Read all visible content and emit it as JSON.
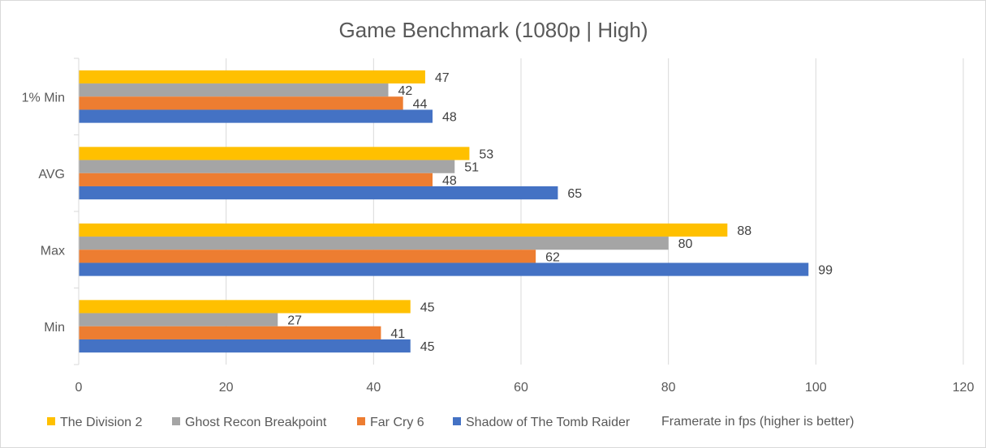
{
  "chart_data": {
    "type": "bar",
    "orientation": "horizontal",
    "title": "Game Benchmark (1080p | High)",
    "xlabel": "Framerate in fps (higher is better)",
    "ylabel": "",
    "categories": [
      "1% Min",
      "AVG",
      "Max",
      "Min"
    ],
    "series": [
      {
        "name": "The Division 2",
        "color": "#ffc000",
        "values": [
          47,
          53,
          88,
          45
        ]
      },
      {
        "name": "Ghost Recon Breakpoint",
        "color": "#a5a5a5",
        "values": [
          42,
          51,
          80,
          27
        ]
      },
      {
        "name": "Far Cry 6",
        "color": "#ed7d31",
        "values": [
          44,
          48,
          62,
          41
        ]
      },
      {
        "name": "Shadow of The Tomb Raider",
        "color": "#4472c4",
        "values": [
          48,
          65,
          99,
          45
        ]
      }
    ],
    "xlim": [
      0,
      120
    ],
    "xticks": [
      0,
      20,
      40,
      60,
      80,
      100,
      120
    ],
    "grid": "vertical",
    "legend_position": "bottom",
    "data_labels": true
  }
}
